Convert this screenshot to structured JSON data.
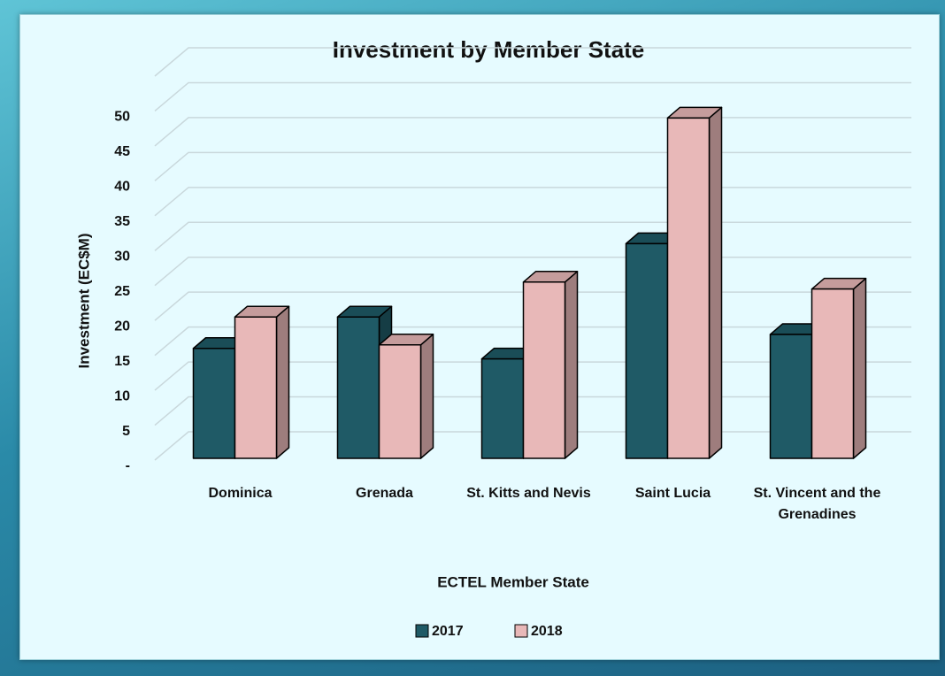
{
  "chart_data": {
    "type": "bar3d",
    "title": "Investment by Member State",
    "x_label": "ECTEL Member State",
    "y_label": "Investment (EC$M)",
    "categories": [
      "Dominica",
      "Grenada",
      "St. Kitts and Nevis",
      "Saint Lucia",
      "St. Vincent and the Grenadines"
    ],
    "series": [
      {
        "name": "2017",
        "color": "#1f5a66",
        "values": [
          16,
          20.5,
          14.5,
          31,
          18
        ]
      },
      {
        "name": "2018",
        "color": "#e8b8b8",
        "values": [
          20.5,
          16.5,
          25.5,
          49,
          24.5
        ]
      }
    ],
    "ylim": [
      0,
      55
    ],
    "yticks": [
      {
        "value": 0,
        "label": "-"
      },
      5,
      10,
      15,
      20,
      25,
      30,
      35,
      40,
      45,
      50
    ],
    "grid": true,
    "legend": "bottom"
  }
}
